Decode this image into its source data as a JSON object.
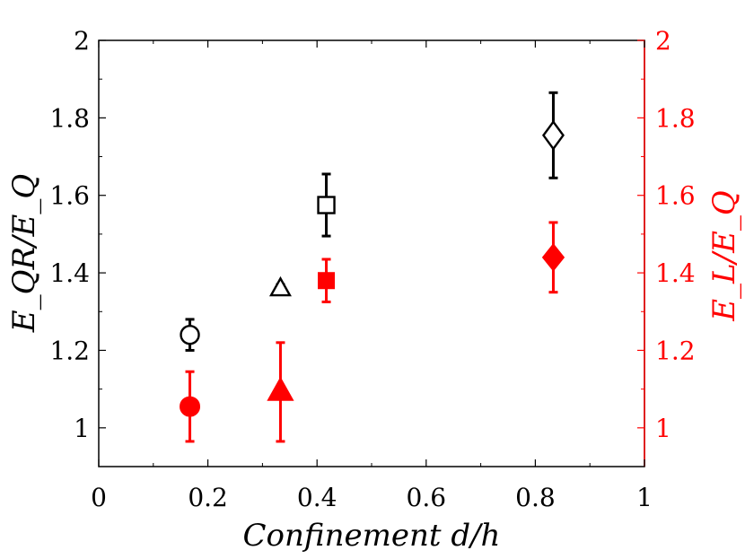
{
  "chart_data": {
    "type": "scatter",
    "xlabel": "Confinement d/h",
    "ylabel_left": "E_QR/E_Q",
    "ylabel_right": "E_L/E_Q",
    "xlim": [
      0,
      1
    ],
    "ylim": [
      0.9,
      2
    ],
    "x_ticks": [
      "0",
      "0.2",
      "0.4",
      "0.6",
      "0.8",
      "1"
    ],
    "y_ticks_left": [
      "1",
      "1.2",
      "1.4",
      "1.6",
      "1.8",
      "2"
    ],
    "y_ticks_right": [
      "1",
      "1.2",
      "1.4",
      "1.6",
      "1.8",
      "2"
    ],
    "colors": {
      "left": "#000000",
      "right": "#ff0000"
    },
    "series": [
      {
        "name": "E_QR/E_Q",
        "axis": "left",
        "filled": false,
        "points": [
          {
            "x": 0.167,
            "y": 1.24,
            "yerr": [
              1.2,
              1.28
            ],
            "marker": "circle"
          },
          {
            "x": 0.333,
            "y": 1.36,
            "yerr": [
              1.35,
              1.37
            ],
            "marker": "triangle"
          },
          {
            "x": 0.417,
            "y": 1.575,
            "yerr": [
              1.495,
              1.655
            ],
            "marker": "square"
          },
          {
            "x": 0.833,
            "y": 1.755,
            "yerr": [
              1.645,
              1.865
            ],
            "marker": "diamond"
          }
        ]
      },
      {
        "name": "E_L/E_Q",
        "axis": "right",
        "filled": true,
        "points": [
          {
            "x": 0.167,
            "y": 1.055,
            "yerr": [
              0.965,
              1.145
            ],
            "marker": "circle"
          },
          {
            "x": 0.333,
            "y": 1.095,
            "yerr": [
              0.965,
              1.22
            ],
            "marker": "triangle"
          },
          {
            "x": 0.417,
            "y": 1.38,
            "yerr": [
              1.325,
              1.435
            ],
            "marker": "square"
          },
          {
            "x": 0.833,
            "y": 1.44,
            "yerr": [
              1.35,
              1.53
            ],
            "marker": "diamond"
          }
        ]
      }
    ]
  }
}
